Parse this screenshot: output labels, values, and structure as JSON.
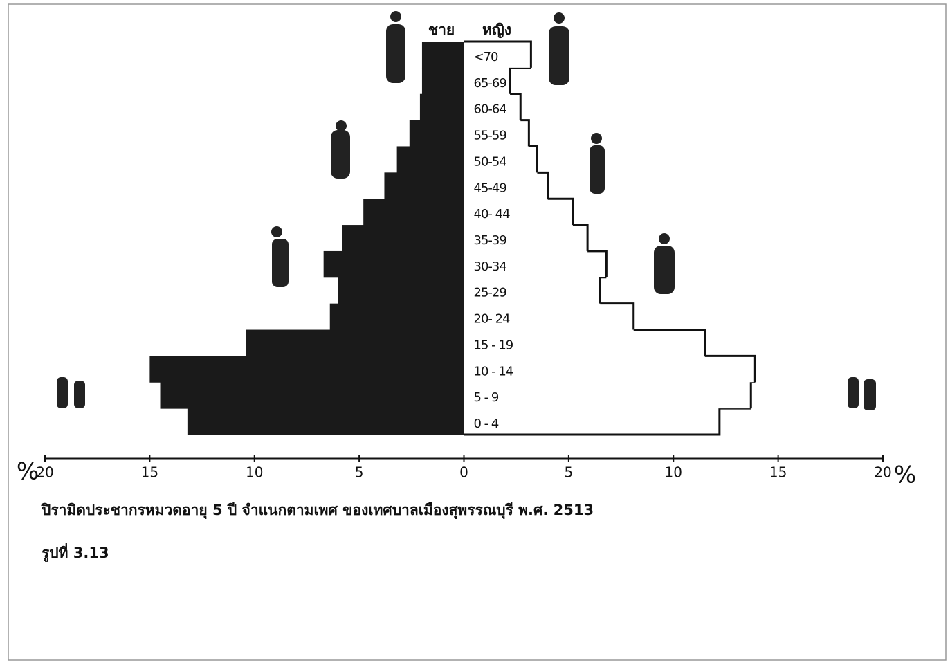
{
  "chart_data": {
    "type": "pyramid",
    "left_label": "ชาย",
    "right_label": "หญิง",
    "title": "ปิรามิดประชากรหมวดอายุ 5 ปี จำแนกตามเพศ ของเทศบาลเมืองสุพรรณบุรี พ.ศ. 2513",
    "figure_label": "รูปที่ 3.13",
    "x_unit": "%",
    "categories": [
      "0 - 4",
      "5 - 9",
      "10 - 14",
      "15 - 19",
      "20- 24",
      "25-29",
      "30-34",
      "35-39",
      "40- 44",
      "45-49",
      "50-54",
      "55-59",
      "60-64",
      "65-69",
      "<70"
    ],
    "series": [
      {
        "name": "ชาย",
        "color": "#1a1a1a",
        "values": [
          13.2,
          14.5,
          15.0,
          10.4,
          6.4,
          6.0,
          6.7,
          5.8,
          4.8,
          3.8,
          3.2,
          2.6,
          2.1,
          2.0,
          2.0
        ]
      },
      {
        "name": "หญิง",
        "color": "#ffffff",
        "values": [
          12.2,
          13.7,
          13.9,
          11.5,
          8.1,
          6.5,
          6.8,
          5.9,
          5.2,
          4.0,
          3.5,
          3.1,
          2.7,
          2.2,
          3.2
        ]
      }
    ],
    "xlim": [
      -20,
      20
    ],
    "xticks": [
      {
        "value": -20,
        "label": "20"
      },
      {
        "value": -15,
        "label": "15"
      },
      {
        "value": -10,
        "label": "10"
      },
      {
        "value": -5,
        "label": "5"
      },
      0,
      5,
      10,
      15,
      20
    ]
  }
}
